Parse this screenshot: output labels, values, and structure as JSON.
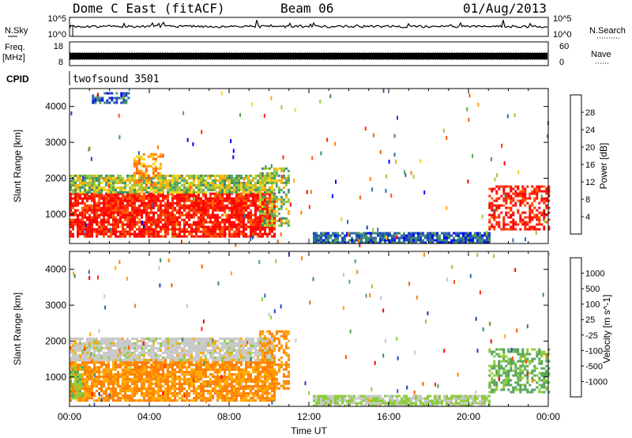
{
  "header": {
    "station": "Dome C East (fitACF)",
    "beam": "Beam 06",
    "date": "01/Aug/2013"
  },
  "strips": {
    "nsky_label": "N.Sky",
    "nsky_ticks": [
      "10^5",
      "10^0"
    ],
    "nsearch_label": "N.Search",
    "nsearch_ticks": [
      "10^5",
      "10^0"
    ],
    "freq_label": "Freq.",
    "freq_unit": "[MHz]",
    "freq_ticks": [
      "18",
      "8"
    ],
    "nave_label": "Nave",
    "nave_ticks": [
      "60",
      "0"
    ],
    "cpid_label": "CPID",
    "cpid_value": "twofsound 3501"
  },
  "colors": {
    "power_scale": [
      "#0000ff",
      "#1e3fc2",
      "#2f6aa8",
      "#3d8a6e",
      "#56a55c",
      "#9cc83c",
      "#f2d51a",
      "#ffaa00",
      "#ff8000",
      "#ff5a00",
      "#ff2a00",
      "#ff0000"
    ],
    "velocity_scale": [
      "#1e3fc2",
      "#2f6aa8",
      "#3d8a6e",
      "#56a55c",
      "#8ccd3a",
      "#c8c8c8",
      "#ffaa00",
      "#ff8000",
      "#ff5a00",
      "#ff2a00",
      "#ff0000"
    ]
  },
  "chart_data": [
    {
      "type": "heatmap",
      "name": "power-panel",
      "xlabel": "",
      "ylabel": "Slant Range [km]",
      "xlim": [
        0,
        24
      ],
      "ylim": [
        180,
        4500
      ],
      "yticks": [
        "1000",
        "2000",
        "3000",
        "4000"
      ],
      "colorbar": {
        "label": "Power [dB]",
        "ticks": [
          "4",
          "8",
          "12",
          "16",
          "20",
          "24",
          "28"
        ],
        "range": [
          0,
          30
        ]
      },
      "regions": [
        {
          "x": [
            0,
            10.3
          ],
          "y": [
            400,
            1600
          ],
          "value": 28
        },
        {
          "x": [
            0,
            10.3
          ],
          "y": [
            1600,
            2100
          ],
          "value": 14
        },
        {
          "x": [
            3.2,
            4.6
          ],
          "y": [
            1800,
            2700
          ],
          "value": 20
        },
        {
          "x": [
            9.5,
            11.0
          ],
          "y": [
            700,
            2300
          ],
          "value": 14
        },
        {
          "x": [
            12.2,
            21.0
          ],
          "y": [
            200,
            500
          ],
          "value": 6
        },
        {
          "x": [
            21.0,
            24
          ],
          "y": [
            600,
            1800
          ],
          "value": 28
        },
        {
          "x": [
            1.0,
            3.0
          ],
          "y": [
            4100,
            4400
          ],
          "value": 6
        }
      ]
    },
    {
      "type": "heatmap",
      "name": "velocity-panel",
      "xlabel": "Time UT",
      "ylabel": "Slant Range [km]",
      "xlim": [
        0,
        24
      ],
      "ylim": [
        180,
        4500
      ],
      "xticks": [
        "00:00",
        "04:00",
        "08:00",
        "12:00",
        "16:00",
        "20:00",
        "00:00"
      ],
      "yticks": [
        "1000",
        "2000",
        "3000",
        "4000"
      ],
      "colorbar": {
        "label": "Velocity [m s^-1]",
        "ticks": [
          "1000",
          "500",
          "100",
          "25",
          "-25",
          "-100",
          "-500",
          "-1000"
        ],
        "range": [
          -1000,
          1000
        ]
      },
      "regions": [
        {
          "x": [
            0,
            10.3
          ],
          "y": [
            350,
            1500
          ],
          "value": -300
        },
        {
          "x": [
            0,
            10.3
          ],
          "y": [
            1500,
            2100
          ],
          "value": 0
        },
        {
          "x": [
            0,
            0.6
          ],
          "y": [
            400,
            1300
          ],
          "value": 200
        },
        {
          "x": [
            9.5,
            11.0
          ],
          "y": [
            700,
            2300
          ],
          "value": -300
        },
        {
          "x": [
            12.2,
            21.0
          ],
          "y": [
            200,
            500
          ],
          "value": 100
        },
        {
          "x": [
            21.0,
            24
          ],
          "y": [
            600,
            1800
          ],
          "value": 300
        }
      ]
    }
  ]
}
